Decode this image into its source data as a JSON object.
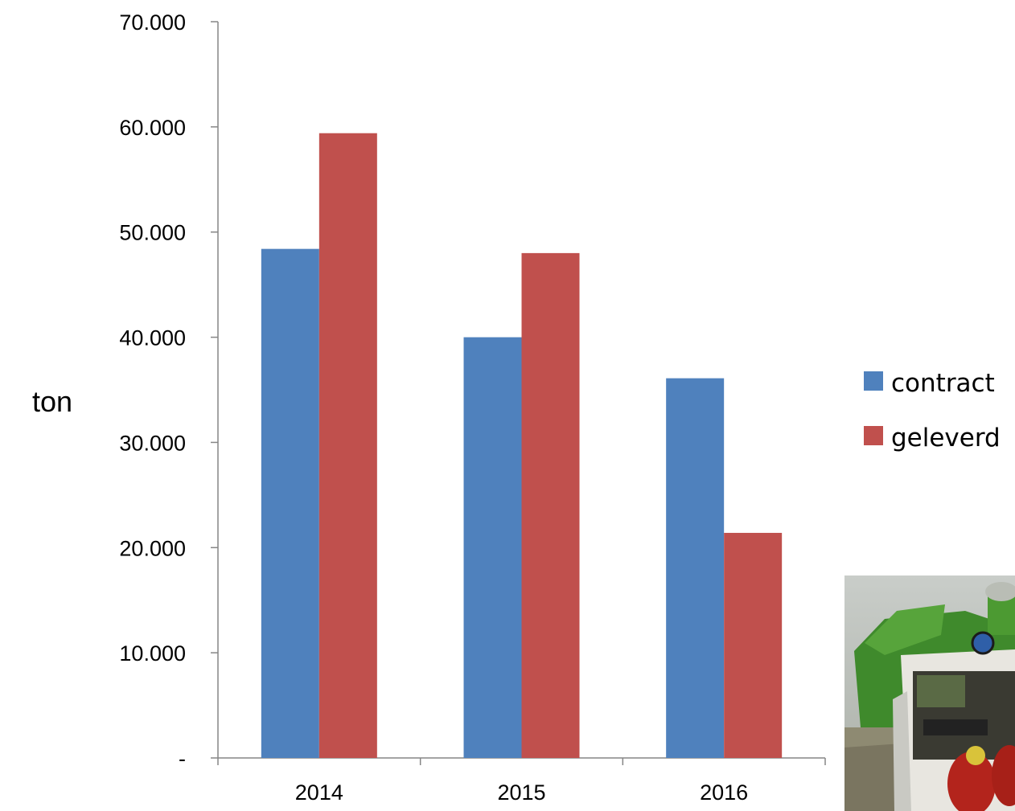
{
  "chart_data": {
    "type": "bar",
    "title": "",
    "xlabel": "",
    "ylabel": "ton",
    "categories": [
      "2014",
      "2015",
      "2016"
    ],
    "series": [
      {
        "name": "contract",
        "color": "#4f81bd",
        "values": [
          48400,
          40000,
          36100
        ]
      },
      {
        "name": "geleverd",
        "color": "#c0504d",
        "values": [
          59400,
          48000,
          21400
        ]
      }
    ],
    "ylim": [
      0,
      70000
    ],
    "yticks": [
      0,
      10000,
      20000,
      30000,
      40000,
      50000,
      60000,
      70000
    ],
    "ytick_labels": [
      "-",
      "10.000",
      "20.000",
      "30.000",
      "40.000",
      "50.000",
      "60.000",
      "70.000"
    ],
    "grid": false,
    "legend_position": "right"
  },
  "photo": {
    "subject": "green harvester machine with workers in red jackets in a foggy field"
  }
}
